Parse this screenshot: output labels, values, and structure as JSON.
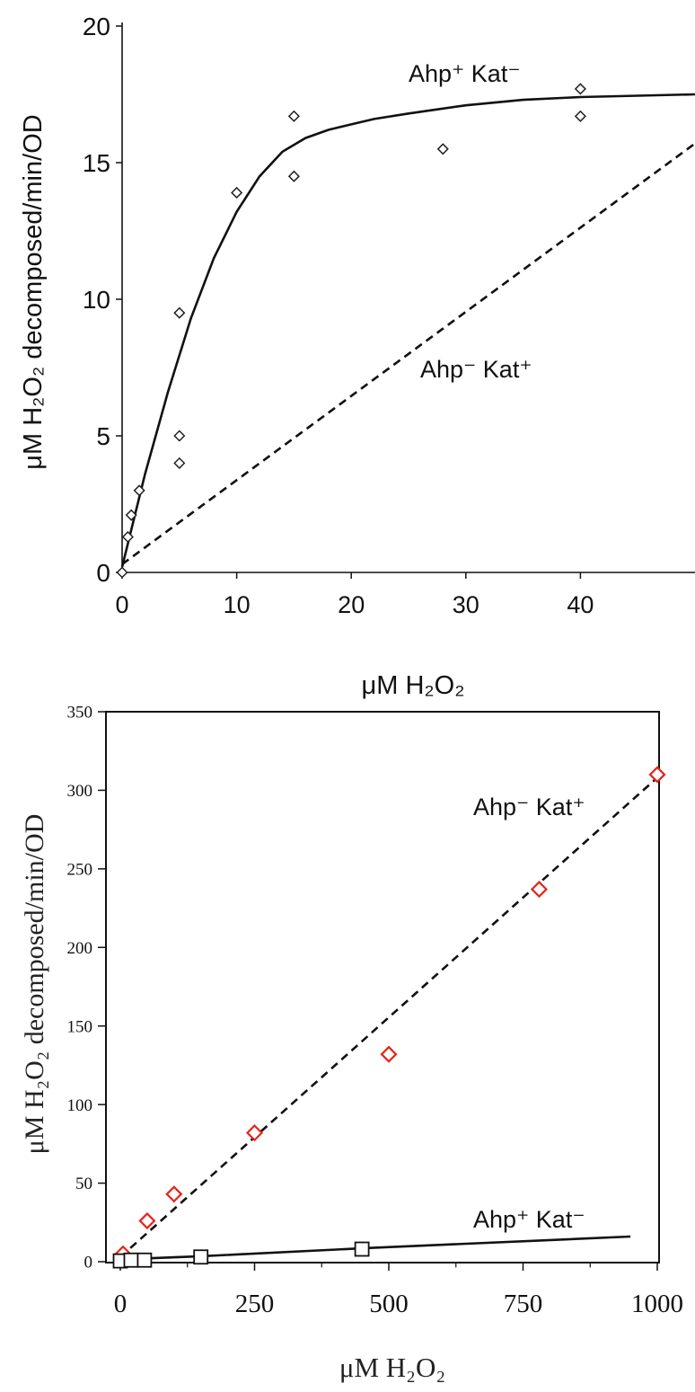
{
  "chart_data": [
    {
      "type": "scatter",
      "xlabel": "μM H₂O₂",
      "ylabel": "μM H₂O₂ decomposed/min/OD",
      "xlim": [
        0,
        50
      ],
      "ylim": [
        0,
        20
      ],
      "xticks": [
        0,
        10,
        20,
        30,
        40
      ],
      "yticks": [
        0,
        5,
        10,
        15,
        20
      ],
      "series": [
        {
          "name": "Ahp⁺ Kat⁻",
          "marker": "diamond",
          "color": "#222222",
          "points": [
            [
              0,
              0
            ],
            [
              0.5,
              1.3
            ],
            [
              0.8,
              2.1
            ],
            [
              1.5,
              3.0
            ],
            [
              5,
              4.0
            ],
            [
              5,
              5.0
            ],
            [
              5,
              9.5
            ],
            [
              10,
              13.9
            ],
            [
              15,
              14.5
            ],
            [
              15,
              16.7
            ],
            [
              28,
              15.5
            ],
            [
              40,
              16.7
            ],
            [
              40,
              17.7
            ]
          ],
          "fit": [
            [
              0,
              0.2
            ],
            [
              2,
              3.6
            ],
            [
              4,
              6.6
            ],
            [
              6,
              9.3
            ],
            [
              8,
              11.5
            ],
            [
              10,
              13.2
            ],
            [
              12,
              14.5
            ],
            [
              14,
              15.4
            ],
            [
              16,
              15.9
            ],
            [
              18,
              16.2
            ],
            [
              20,
              16.4
            ],
            [
              22,
              16.6
            ],
            [
              25,
              16.8
            ],
            [
              30,
              17.1
            ],
            [
              35,
              17.3
            ],
            [
              40,
              17.4
            ],
            [
              45,
              17.45
            ],
            [
              50,
              17.5
            ]
          ]
        },
        {
          "name": "Ahp⁻ Kat⁺",
          "line": "dashed",
          "color": "#111111",
          "fit": [
            [
              0,
              0.3
            ],
            [
              50,
              15.7
            ]
          ]
        }
      ]
    },
    {
      "type": "scatter",
      "xlabel": "μM H₂O₂",
      "ylabel": "μM H₂O₂ decomposed/min/OD",
      "xlim": [
        0,
        1000
      ],
      "ylim": [
        0,
        350
      ],
      "xticks": [
        0,
        250,
        500,
        750,
        1000
      ],
      "yticks": [
        0,
        50,
        100,
        150,
        200,
        250,
        300,
        350
      ],
      "series": [
        {
          "name": "Ahp⁻ Kat⁺",
          "marker": "diamond",
          "color": "#e8221b",
          "points": [
            [
              5,
              5
            ],
            [
              50,
              26
            ],
            [
              100,
              43
            ],
            [
              250,
              82
            ],
            [
              500,
              132
            ],
            [
              780,
              237
            ],
            [
              1000,
              310
            ]
          ],
          "fit": [
            [
              0,
              3
            ],
            [
              1000,
              308
            ]
          ],
          "line": "dashed"
        },
        {
          "name": "Ahp⁺ Kat⁻",
          "marker": "square",
          "color": "#111111",
          "points": [
            [
              0,
              0.5
            ],
            [
              20,
              1
            ],
            [
              45,
              1
            ],
            [
              150,
              3
            ],
            [
              450,
              8
            ]
          ],
          "fit": [
            [
              0,
              1.5
            ],
            [
              150,
              3.5
            ],
            [
              450,
              8.5
            ],
            [
              950,
              16
            ]
          ]
        }
      ]
    }
  ]
}
